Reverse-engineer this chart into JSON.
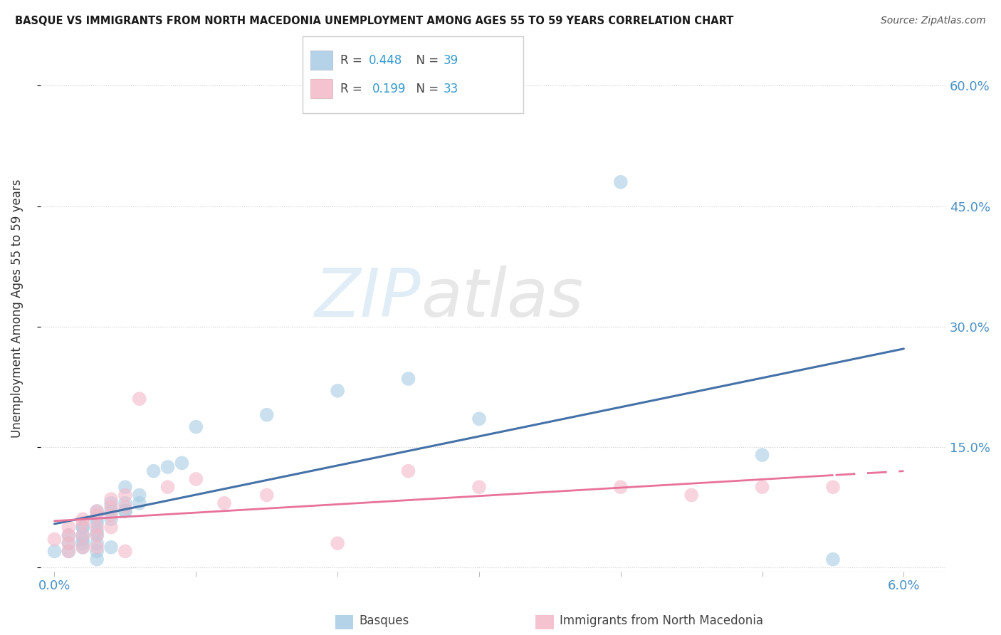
{
  "title": "BASQUE VS IMMIGRANTS FROM NORTH MACEDONIA UNEMPLOYMENT AMONG AGES 55 TO 59 YEARS CORRELATION CHART",
  "source": "Source: ZipAtlas.com",
  "ylabel": "Unemployment Among Ages 55 to 59 years",
  "xlabel_basque": "Basques",
  "xlabel_immigrants": "Immigrants from North Macedonia",
  "xmin": 0.0,
  "xmax": 0.06,
  "ymin": -0.005,
  "ymax": 0.65,
  "yticks": [
    0.0,
    0.15,
    0.3,
    0.45,
    0.6
  ],
  "ytick_labels": [
    "",
    "15.0%",
    "30.0%",
    "45.0%",
    "60.0%"
  ],
  "xticks": [
    0.0,
    0.01,
    0.02,
    0.03,
    0.04,
    0.05,
    0.06
  ],
  "xtick_labels": [
    "0.0%",
    "",
    "",
    "",
    "",
    "",
    "6.0%"
  ],
  "basque_R": 0.448,
  "basque_N": 39,
  "immigrants_R": 0.199,
  "immigrants_N": 33,
  "basque_color": "#a8cce4",
  "immigrants_color": "#f4b8c8",
  "basque_line_color": "#4472a8",
  "immigrants_line_color": "#e8729a",
  "watermark_zip": "ZIP",
  "watermark_atlas": "atlas",
  "basque_x": [
    0.0,
    0.001,
    0.001,
    0.001,
    0.002,
    0.002,
    0.002,
    0.002,
    0.002,
    0.002,
    0.003,
    0.003,
    0.003,
    0.003,
    0.003,
    0.003,
    0.003,
    0.003,
    0.004,
    0.004,
    0.004,
    0.004,
    0.005,
    0.005,
    0.005,
    0.005,
    0.006,
    0.006,
    0.007,
    0.008,
    0.009,
    0.01,
    0.015,
    0.02,
    0.025,
    0.03,
    0.04,
    0.05,
    0.055
  ],
  "basque_y": [
    0.02,
    0.04,
    0.03,
    0.02,
    0.05,
    0.04,
    0.035,
    0.05,
    0.03,
    0.025,
    0.07,
    0.06,
    0.055,
    0.045,
    0.04,
    0.03,
    0.02,
    0.01,
    0.08,
    0.07,
    0.06,
    0.025,
    0.07,
    0.07,
    0.08,
    0.1,
    0.08,
    0.09,
    0.12,
    0.125,
    0.13,
    0.175,
    0.19,
    0.22,
    0.235,
    0.185,
    0.48,
    0.14,
    0.01
  ],
  "immigrants_x": [
    0.0,
    0.001,
    0.001,
    0.001,
    0.001,
    0.002,
    0.002,
    0.002,
    0.002,
    0.003,
    0.003,
    0.003,
    0.003,
    0.003,
    0.004,
    0.004,
    0.004,
    0.004,
    0.005,
    0.005,
    0.005,
    0.006,
    0.008,
    0.01,
    0.012,
    0.015,
    0.02,
    0.025,
    0.03,
    0.04,
    0.045,
    0.05,
    0.055
  ],
  "immigrants_y": [
    0.035,
    0.05,
    0.04,
    0.03,
    0.02,
    0.06,
    0.055,
    0.04,
    0.025,
    0.07,
    0.065,
    0.05,
    0.04,
    0.025,
    0.085,
    0.075,
    0.065,
    0.05,
    0.09,
    0.075,
    0.02,
    0.21,
    0.1,
    0.11,
    0.08,
    0.09,
    0.03,
    0.12,
    0.1,
    0.1,
    0.09,
    0.1,
    0.1
  ]
}
